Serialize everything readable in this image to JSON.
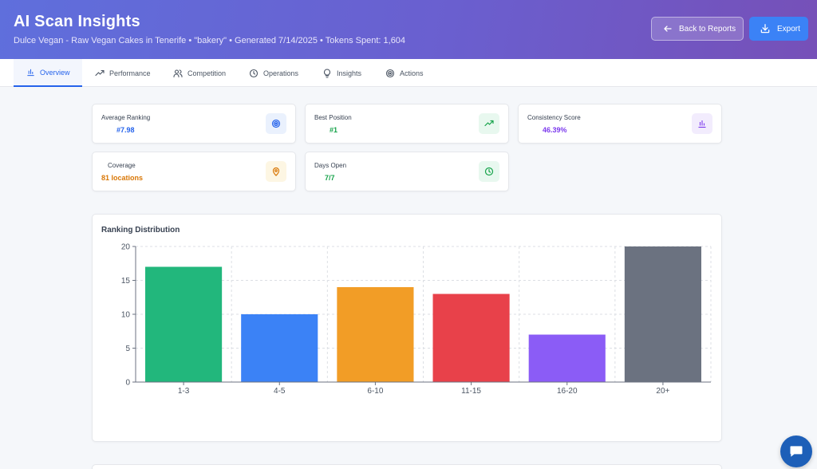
{
  "header": {
    "title": "AI Scan Insights",
    "subtitle": "Dulce Vegan - Raw Vegan Cakes in Tenerife • \"bakery\" • Generated 7/14/2025 • Tokens Spent: 1,604",
    "back_label": "Back to Reports",
    "export_label": "Export"
  },
  "tabs": [
    {
      "label": "Overview",
      "icon": "bar-chart-icon",
      "active": true
    },
    {
      "label": "Performance",
      "icon": "trending-up-icon"
    },
    {
      "label": "Competition",
      "icon": "users-icon"
    },
    {
      "label": "Operations",
      "icon": "clock-icon"
    },
    {
      "label": "Insights",
      "icon": "lightbulb-icon"
    },
    {
      "label": "Actions",
      "icon": "target-icon"
    }
  ],
  "stats": [
    {
      "label": "Average Ranking",
      "value": "#7.98",
      "color": "#2563eb",
      "icon": "target-icon",
      "icon_bg": "#eaf1fd"
    },
    {
      "label": "Best Position",
      "value": "#1",
      "color": "#16a34a",
      "icon": "trending-up-icon",
      "icon_bg": "#e8f8ef"
    },
    {
      "label": "Consistency Score",
      "value": "46.39%",
      "color": "#7c3aed",
      "icon": "bar-chart-icon",
      "icon_bg": "#f2ecfd"
    },
    {
      "label": "Coverage",
      "value": "81 locations",
      "color": "#d97706",
      "icon": "map-pin-icon",
      "icon_bg": "#fdf6e3"
    },
    {
      "label": "Days Open",
      "value": "7/7",
      "color": "#16a34a",
      "icon": "clock-icon",
      "icon_bg": "#e8f8ef"
    }
  ],
  "chart_data": {
    "type": "bar",
    "title": "Ranking Distribution",
    "categories": [
      "1-3",
      "4-5",
      "6-10",
      "11-15",
      "16-20",
      "20+"
    ],
    "values": [
      17,
      10,
      14,
      13,
      7,
      20
    ],
    "colors": [
      "#22b77c",
      "#3b82f6",
      "#f29d26",
      "#e8414a",
      "#8b5cf6",
      "#6b7280"
    ],
    "ylim": [
      0,
      20
    ],
    "yticks": [
      0,
      5,
      10,
      15,
      20
    ],
    "grid": true
  }
}
